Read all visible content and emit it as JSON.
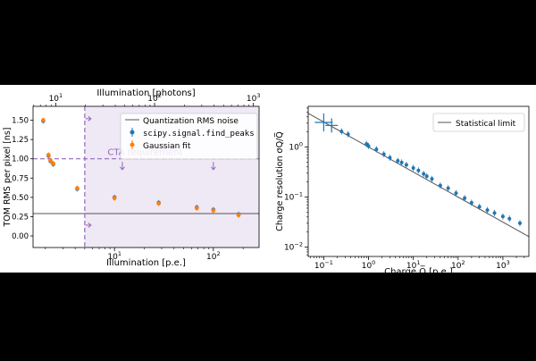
{
  "chart_data": [
    {
      "type": "scatter",
      "xlabel": "Illumination [p.e.]",
      "x2label": "Illumination [photons]",
      "ylabel": "TOM RMS per pixel [ns]",
      "xscale": "log",
      "xlim": [
        1.5,
        290
      ],
      "x2lim": [
        5.9,
        1140
      ],
      "ylim": [
        -0.15,
        1.68
      ],
      "xticks": [
        {
          "v": 10,
          "base": "10",
          "exp": "1"
        },
        {
          "v": 100,
          "base": "10",
          "exp": "2"
        }
      ],
      "x2ticks": [
        {
          "v": 10,
          "base": "10",
          "exp": "1"
        },
        {
          "v": 100,
          "base": "10",
          "exp": "2"
        },
        {
          "v": 1000,
          "base": "10",
          "exp": "3"
        }
      ],
      "yticks": [
        "0.00",
        "0.25",
        "0.50",
        "0.75",
        "1.00",
        "1.25",
        "1.50"
      ],
      "legend_position": "top-right",
      "series": [
        {
          "name": "scipy.signal.find_peaks",
          "color": "#1f77b4",
          "x": [
            1.9,
            2.15,
            2.25,
            2.4,
            4.2,
            10,
            28,
            68,
            100,
            180
          ],
          "y": [
            1.49,
            1.04,
            0.97,
            0.93,
            0.61,
            0.5,
            0.43,
            0.37,
            0.34,
            0.28
          ]
        },
        {
          "name": "Gaussian fit",
          "color": "#ff7f0e",
          "x": [
            1.9,
            2.15,
            2.25,
            2.4,
            4.2,
            10,
            28,
            68,
            100,
            180
          ],
          "y": [
            1.5,
            1.05,
            0.98,
            0.94,
            0.62,
            0.49,
            0.42,
            0.36,
            0.33,
            0.27
          ]
        }
      ],
      "hlines": [
        {
          "name": "Quantization RMS noise",
          "y": 0.29,
          "color": "#555555",
          "style": "solid"
        },
        {
          "name": "CTA requirement",
          "y": 1.0,
          "color": "#9467bd",
          "style": "dashed"
        }
      ],
      "vline": {
        "x": 5,
        "color": "#9467bd",
        "style": "dashed"
      },
      "shaded_region": {
        "x_from": 5,
        "color": "#9467bd"
      },
      "annotation": "CTA requirement"
    },
    {
      "type": "scatter",
      "xlabel": "Charge Q̅ [p.e.]",
      "ylabel": "Charge resolution σQ/Q̅",
      "xscale": "log",
      "yscale": "log",
      "xlim": [
        0.045,
        3800
      ],
      "ylim": [
        0.0065,
        6.5
      ],
      "xticks": [
        {
          "v": 0.1,
          "base": "10",
          "exp": "−1"
        },
        {
          "v": 1,
          "base": "10",
          "exp": "0"
        },
        {
          "v": 10,
          "base": "10",
          "exp": "1"
        },
        {
          "v": 100,
          "base": "10",
          "exp": "2"
        },
        {
          "v": 1000,
          "base": "10",
          "exp": "3"
        }
      ],
      "yticks": [
        {
          "v": 0.01,
          "base": "10",
          "exp": "−2"
        },
        {
          "v": 0.1,
          "base": "10",
          "exp": "−1"
        },
        {
          "v": 1,
          "base": "10",
          "exp": "0"
        }
      ],
      "legend_position": "top-right",
      "line": {
        "name": "Statistical limit",
        "color": "#555555",
        "x": [
          0.045,
          3800
        ],
        "y": [
          4.71,
          0.0162
        ]
      },
      "series": [
        {
          "name": "",
          "color": "#1f77b4",
          "x": [
            0.1,
            0.15,
            0.25,
            0.35,
            0.9,
            1.0,
            1.5,
            2.2,
            3.0,
            4.5,
            5.5,
            7.0,
            10,
            13,
            17,
            20,
            26,
            40,
            60,
            90,
            140,
            200,
            300,
            450,
            650,
            1000,
            1400,
            2400
          ],
          "y": [
            3.1,
            2.7,
            2.05,
            1.8,
            1.15,
            1.05,
            0.9,
            0.72,
            0.61,
            0.53,
            0.49,
            0.44,
            0.38,
            0.34,
            0.29,
            0.26,
            0.23,
            0.17,
            0.15,
            0.12,
            0.095,
            0.077,
            0.064,
            0.055,
            0.048,
            0.041,
            0.037,
            0.03
          ],
          "xerr_shown_for_first": 2
        }
      ]
    }
  ]
}
